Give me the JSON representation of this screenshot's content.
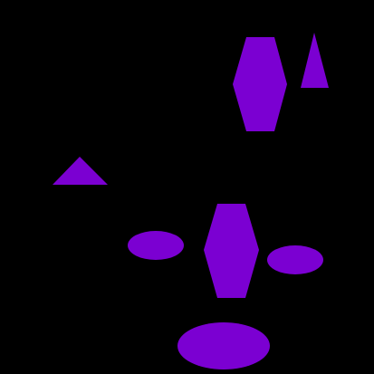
{
  "canvas": {
    "background_color": "#000000"
  },
  "shape_color": "#7B00D2",
  "shapes": [
    {
      "id": "hexagon-top",
      "kind": "hexagon"
    },
    {
      "id": "triangle-tall",
      "kind": "triangle"
    },
    {
      "id": "triangle-small",
      "kind": "triangle"
    },
    {
      "id": "hexagon-bottom",
      "kind": "hexagon"
    },
    {
      "id": "ellipse-left",
      "kind": "ellipse"
    },
    {
      "id": "ellipse-right",
      "kind": "ellipse"
    },
    {
      "id": "ellipse-bottom",
      "kind": "ellipse"
    }
  ]
}
